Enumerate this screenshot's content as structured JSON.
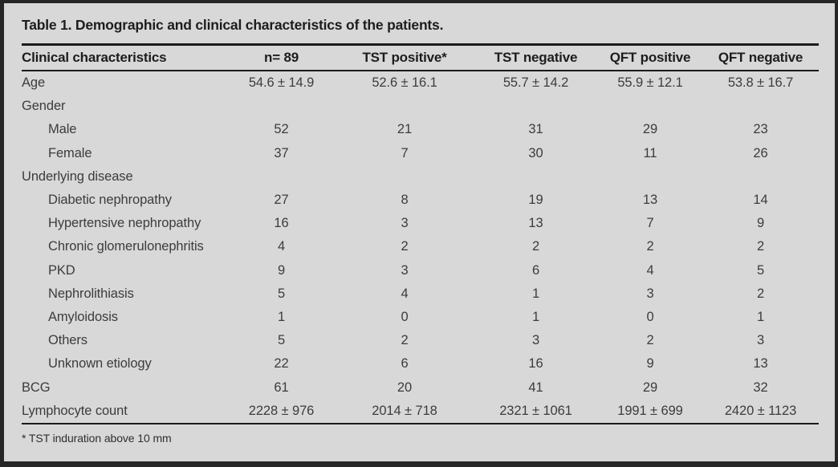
{
  "table": {
    "title": "Table 1. Demographic and clinical characteristics of the patients.",
    "columns": [
      "Clinical characteristics",
      "n= 89",
      "TST positive*",
      "TST negative",
      "QFT positive",
      "QFT negative"
    ],
    "rows": [
      {
        "label": "Age",
        "indent": false,
        "values": [
          "54.6 ± 14.9",
          "52.6 ± 16.1",
          "55.7 ± 14.2",
          "55.9 ± 12.1",
          "53.8 ± 16.7"
        ]
      },
      {
        "label": "Gender",
        "indent": false,
        "values": [
          "",
          "",
          "",
          "",
          ""
        ]
      },
      {
        "label": "Male",
        "indent": true,
        "values": [
          "52",
          "21",
          "31",
          "29",
          "23"
        ]
      },
      {
        "label": "Female",
        "indent": true,
        "values": [
          "37",
          "7",
          "30",
          "11",
          "26"
        ]
      },
      {
        "label": "Underlying disease",
        "indent": false,
        "values": [
          "",
          "",
          "",
          "",
          ""
        ]
      },
      {
        "label": "Diabetic nephropathy",
        "indent": true,
        "values": [
          "27",
          "8",
          "19",
          "13",
          "14"
        ]
      },
      {
        "label": "Hypertensive nephropathy",
        "indent": true,
        "values": [
          "16",
          "3",
          "13",
          "7",
          "9"
        ]
      },
      {
        "label": "Chronic glomerulonephritis",
        "indent": true,
        "values": [
          "4",
          "2",
          "2",
          "2",
          "2"
        ]
      },
      {
        "label": "PKD",
        "indent": true,
        "values": [
          "9",
          "3",
          "6",
          "4",
          "5"
        ]
      },
      {
        "label": "Nephrolithiasis",
        "indent": true,
        "values": [
          "5",
          "4",
          "1",
          "3",
          "2"
        ]
      },
      {
        "label": "Amyloidosis",
        "indent": true,
        "values": [
          "1",
          "0",
          "1",
          "0",
          "1"
        ]
      },
      {
        "label": "Others",
        "indent": true,
        "values": [
          "5",
          "2",
          "3",
          "2",
          "3"
        ]
      },
      {
        "label": "Unknown etiology",
        "indent": true,
        "values": [
          "22",
          "6",
          "16",
          "9",
          "13"
        ]
      },
      {
        "label": "BCG",
        "indent": false,
        "values": [
          "61",
          "20",
          "41",
          "29",
          "32"
        ]
      },
      {
        "label": "Lymphocyte count",
        "indent": false,
        "values": [
          "2228 ± 976",
          "2014 ± 718",
          "2321 ± 1061",
          "1991 ± 699",
          "2420 ± 1123"
        ]
      }
    ],
    "footnote": "* TST induration above 10 mm"
  },
  "colors": {
    "background": "#d8d8d8",
    "frame": "#262626",
    "rule": "#1b1b1b",
    "heading_text": "#1d1d1d",
    "body_text": "#3c3c3c"
  }
}
